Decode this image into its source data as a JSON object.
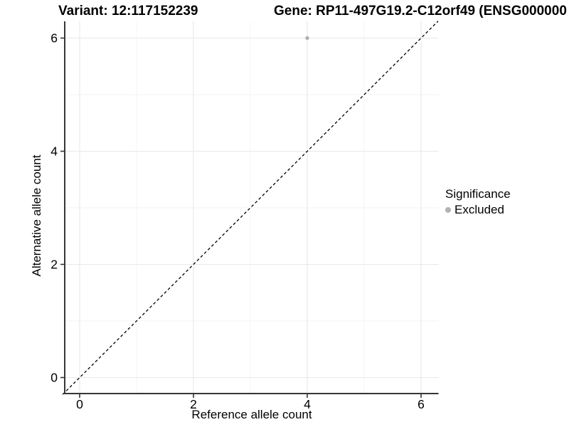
{
  "titles": {
    "left": "Variant: 12:117152239",
    "right": "Gene: RP11-497G19.2-C12orf49 (ENSG000000"
  },
  "chart_data": {
    "type": "scatter",
    "xlabel": "Reference allele count",
    "ylabel": "Alternative allele count",
    "xlim": [
      -0.3,
      6.3
    ],
    "ylim": [
      -0.3,
      6.3
    ],
    "x_ticks": [
      0,
      2,
      4,
      6
    ],
    "y_ticks": [
      0,
      2,
      4,
      6
    ],
    "x_minor_ticks": [
      1,
      3,
      5
    ],
    "y_minor_ticks": [
      1,
      3,
      5
    ],
    "grid": true,
    "identity_line": {
      "style": "dashed",
      "x1": -0.3,
      "y1": -0.3,
      "x2": 6.3,
      "y2": 6.3
    },
    "points": [
      {
        "x": 4,
        "y": 6,
        "series": "Excluded"
      }
    ],
    "legend": {
      "position": "right",
      "title": "Significance",
      "items": [
        {
          "label": "Excluded",
          "color": "#b2b2b2"
        }
      ]
    },
    "colors": {
      "point": "#b0b0b0",
      "grid_major": "#e8e8e8",
      "grid_minor": "#f3f3f3",
      "axis": "#363636",
      "diagonal": "#000000",
      "tick_text": "#000000"
    }
  }
}
